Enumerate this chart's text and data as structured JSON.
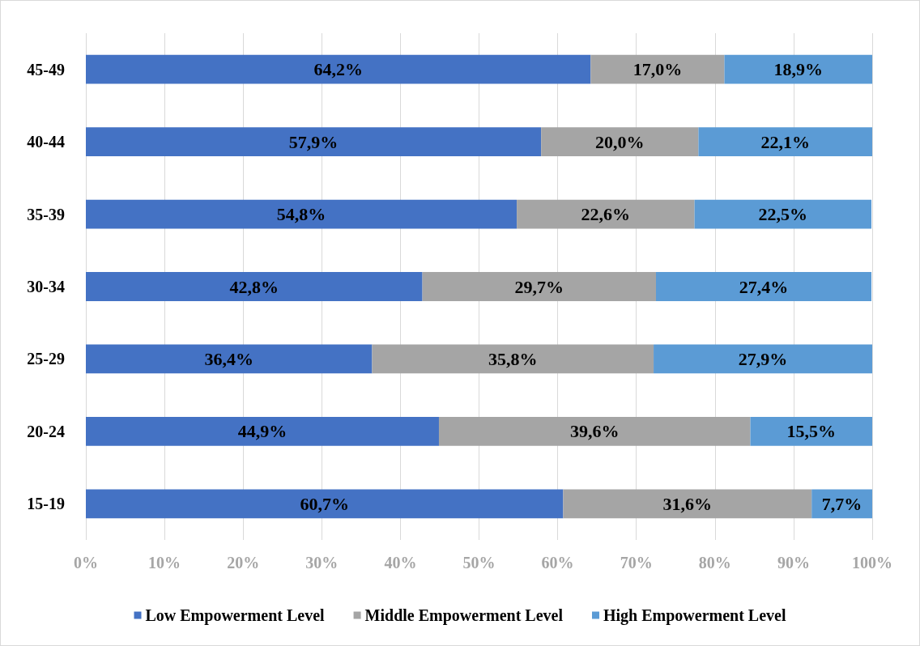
{
  "chart_data": {
    "type": "bar",
    "orientation": "horizontal",
    "stacked": true,
    "categories": [
      "45-49",
      "40-44",
      "35-39",
      "30-34",
      "25-29",
      "20-24",
      "15-19"
    ],
    "series": [
      {
        "name": "Low Empowerment Level",
        "color": "#4472c4",
        "values": [
          64.2,
          57.9,
          54.8,
          42.8,
          36.4,
          44.9,
          60.7
        ],
        "value_labels": [
          "64,2%",
          "57,9%",
          "54,8%",
          "42,8%",
          "36,4%",
          "44,9%",
          "60,7%"
        ]
      },
      {
        "name": "Middle Empowerment Level",
        "color": "#a5a5a5",
        "values": [
          17.0,
          20.0,
          22.6,
          29.7,
          35.8,
          39.6,
          31.6
        ],
        "value_labels": [
          "17,0%",
          "20,0%",
          "22,6%",
          "29,7%",
          "35,8%",
          "39,6%",
          "31,6%"
        ]
      },
      {
        "name": "High Empowerment Level",
        "color": "#5b9bd5",
        "values": [
          18.9,
          22.1,
          22.5,
          27.4,
          27.9,
          15.5,
          7.7
        ],
        "value_labels": [
          "18,9%",
          "22,1%",
          "22,5%",
          "27,4%",
          "27,9%",
          "15,5%",
          "7,7%"
        ]
      }
    ],
    "xlim": [
      0,
      100
    ],
    "xticks": [
      {
        "value": 0,
        "label": "0%"
      },
      {
        "value": 10,
        "label": "10%"
      },
      {
        "value": 20,
        "label": "20%"
      },
      {
        "value": 30,
        "label": "30%"
      },
      {
        "value": 40,
        "label": "40%"
      },
      {
        "value": 50,
        "label": "50%"
      },
      {
        "value": 60,
        "label": "60%"
      },
      {
        "value": 70,
        "label": "70%"
      },
      {
        "value": 80,
        "label": "80%"
      },
      {
        "value": 90,
        "label": "90%"
      },
      {
        "value": 100,
        "label": "100%"
      }
    ],
    "grid": "x",
    "legend": "bottom"
  }
}
